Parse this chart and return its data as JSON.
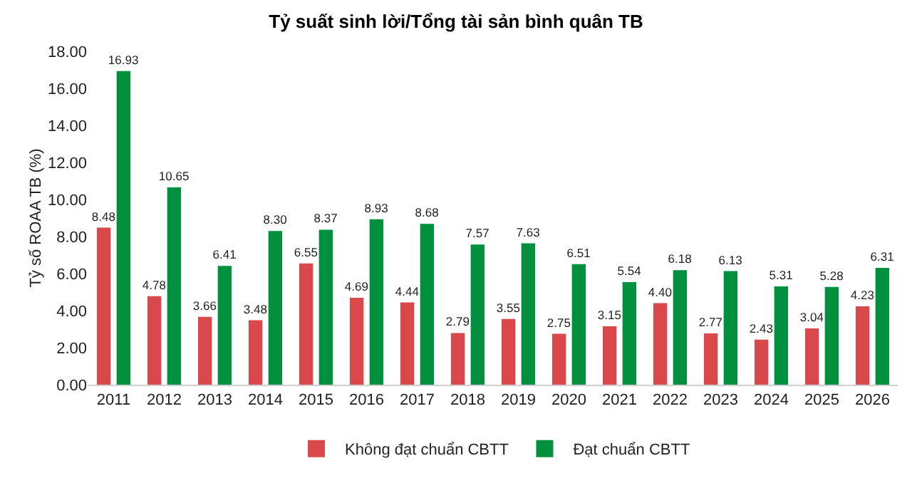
{
  "chart_data": {
    "type": "bar",
    "title": "Tỷ suất sinh lời/Tổng tài sản bình quân TB",
    "ylabel": "Tỷ số ROAA TB (%)",
    "categories": [
      "2011",
      "2012",
      "2013",
      "2014",
      "2015",
      "2016",
      "2017",
      "2018",
      "2019",
      "2020",
      "2021",
      "2022",
      "2023",
      "2024",
      "2025",
      "2026"
    ],
    "series": [
      {
        "name": "Không đạt chuẩn CBTT",
        "color": "#d9484a",
        "values": [
          8.48,
          4.78,
          3.66,
          3.48,
          6.55,
          4.69,
          4.44,
          2.79,
          3.55,
          2.75,
          3.15,
          4.4,
          2.77,
          2.43,
          3.04,
          4.23
        ],
        "value_labels": [
          "8.48",
          "4.78",
          "3.66",
          "3.48",
          "6.55",
          "4.69",
          "4.44",
          "2.79",
          "3.55",
          "2.75",
          "3.15",
          "4.40",
          "2.77",
          "2.43",
          "3.04",
          "4.23"
        ]
      },
      {
        "name": "Đạt chuẩn CBTT",
        "color": "#00903e",
        "values": [
          16.93,
          10.65,
          6.41,
          8.3,
          8.37,
          8.93,
          8.68,
          7.57,
          7.63,
          6.51,
          5.54,
          6.18,
          6.13,
          5.31,
          5.28,
          6.31
        ],
        "value_labels": [
          "16.93",
          "10.65",
          "6.41",
          "8.30",
          "8.37",
          "8.93",
          "8.68",
          "7.57",
          "7.63",
          "6.51",
          "5.54",
          "6.18",
          "6.13",
          "5.31",
          "5.28",
          "6.31"
        ]
      }
    ],
    "ylim": [
      0,
      18
    ],
    "yticks": [
      {
        "value": 0,
        "label": "0.00"
      },
      {
        "value": 2,
        "label": "2.00"
      },
      {
        "value": 4,
        "label": "4.00"
      },
      {
        "value": 6,
        "label": "6.00"
      },
      {
        "value": 8,
        "label": "8.00"
      },
      {
        "value": 10,
        "label": "10.00"
      },
      {
        "value": 12,
        "label": "12.00"
      },
      {
        "value": 14,
        "label": "14.00"
      },
      {
        "value": 16,
        "label": "16.00"
      },
      {
        "value": 18,
        "label": "18.00"
      }
    ],
    "grid": false,
    "legend": "bottom"
  }
}
